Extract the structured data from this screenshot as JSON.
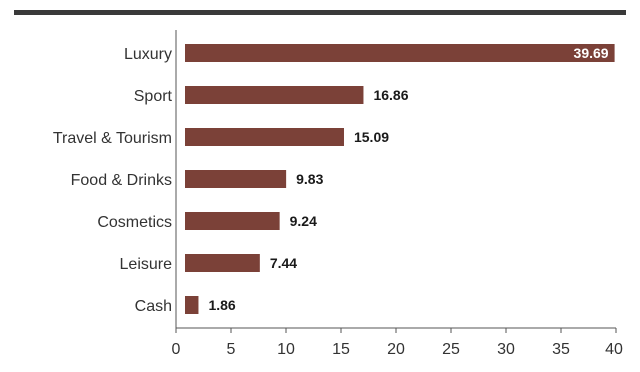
{
  "colors": {
    "bar": "#7B4138",
    "top_rule": "#3a3a3a",
    "axis": "#555555"
  },
  "chart_data": {
    "type": "bar",
    "orientation": "horizontal",
    "title": "",
    "xlabel": "",
    "ylabel": "",
    "categories": [
      "Luxury",
      "Sport",
      "Travel & Tourism",
      "Food & Drinks",
      "Cosmetics",
      "Leisure",
      "Cash"
    ],
    "values": [
      39.69,
      16.86,
      15.09,
      9.83,
      9.24,
      7.44,
      1.86
    ],
    "value_labels": [
      "39.69",
      "16.86",
      "15.09",
      "9.83",
      "9.24",
      "7.44",
      "1.86"
    ],
    "xlim": [
      0,
      40
    ],
    "xticks": [
      0,
      5,
      10,
      15,
      20,
      25,
      30,
      35,
      40
    ],
    "grid": false,
    "legend": "none"
  }
}
